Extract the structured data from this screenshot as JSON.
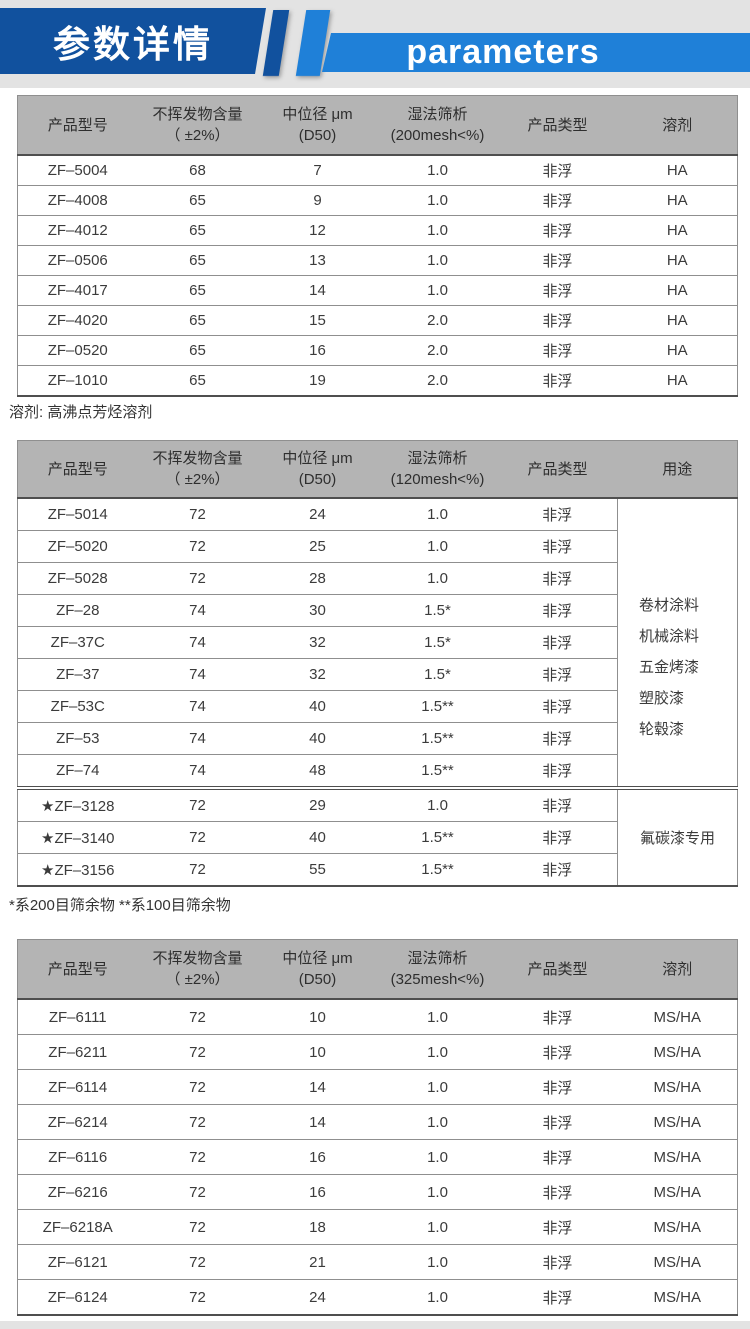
{
  "banner": {
    "title_cn": "参数详情",
    "title_en": "parameters",
    "colors": {
      "dark_blue": "#11519e",
      "light_blue": "#1f80d8",
      "background_gray": "#e3e3e3"
    }
  },
  "table_style": {
    "header_gray": "#b4b4b4",
    "row_border": "#8f8f8f",
    "heavy_border": "#4f4f4f"
  },
  "table1": {
    "columns": [
      [
        "产品型号",
        ""
      ],
      [
        "不挥发物含量",
        "（ ±2%）"
      ],
      [
        "中位径 μm",
        "(D50)"
      ],
      [
        "湿法筛析",
        "(200mesh<%)"
      ],
      [
        "产品类型",
        ""
      ],
      [
        "溶剂",
        ""
      ]
    ],
    "rows": [
      [
        "ZF–5004",
        "68",
        "7",
        "1.0",
        "非浮",
        "HA"
      ],
      [
        "ZF–4008",
        "65",
        "9",
        "1.0",
        "非浮",
        "HA"
      ],
      [
        "ZF–4012",
        "65",
        "12",
        "1.0",
        "非浮",
        "HA"
      ],
      [
        "ZF–0506",
        "65",
        "13",
        "1.0",
        "非浮",
        "HA"
      ],
      [
        "ZF–4017",
        "65",
        "14",
        "1.0",
        "非浮",
        "HA"
      ],
      [
        "ZF–4020",
        "65",
        "15",
        "2.0",
        "非浮",
        "HA"
      ],
      [
        "ZF–0520",
        "65",
        "16",
        "2.0",
        "非浮",
        "HA"
      ],
      [
        "ZF–1010",
        "65",
        "19",
        "2.0",
        "非浮",
        "HA"
      ]
    ],
    "note": "溶剂: 高沸点芳烃溶剂"
  },
  "table2": {
    "columns": [
      [
        "产品型号",
        ""
      ],
      [
        "不挥发物含量",
        "（ ±2%）"
      ],
      [
        "中位径 μm",
        "(D50)"
      ],
      [
        "湿法筛析",
        "(120mesh<%)"
      ],
      [
        "产品类型",
        ""
      ],
      [
        "用途",
        ""
      ]
    ],
    "groups": [
      {
        "rows": [
          [
            "ZF–5014",
            "72",
            "24",
            "1.0",
            "非浮"
          ],
          [
            "ZF–5020",
            "72",
            "25",
            "1.0",
            "非浮"
          ],
          [
            "ZF–5028",
            "72",
            "28",
            "1.0",
            "非浮"
          ],
          [
            "ZF–28",
            "74",
            "30",
            "1.5*",
            "非浮"
          ],
          [
            "ZF–37C",
            "74",
            "32",
            "1.5*",
            "非浮"
          ],
          [
            "ZF–37",
            "74",
            "32",
            "1.5*",
            "非浮"
          ],
          [
            "ZF–53C",
            "74",
            "40",
            "1.5**",
            "非浮"
          ],
          [
            "ZF–53",
            "74",
            "40",
            "1.5**",
            "非浮"
          ],
          [
            "ZF–74",
            "74",
            "48",
            "1.5**",
            "非浮"
          ]
        ],
        "usage": [
          "卷材涂料",
          "机械涂料",
          "五金烤漆",
          "塑胶漆",
          "轮毂漆"
        ]
      },
      {
        "rows": [
          [
            "★ZF–3128",
            "72",
            "29",
            "1.0",
            "非浮"
          ],
          [
            "★ZF–3140",
            "72",
            "40",
            "1.5**",
            "非浮"
          ],
          [
            "★ZF–3156",
            "72",
            "55",
            "1.5**",
            "非浮"
          ]
        ],
        "usage": [
          "氟碳漆专用"
        ]
      }
    ],
    "note": "*系200目筛余物  **系100目筛余物"
  },
  "table3": {
    "columns": [
      [
        "产品型号",
        ""
      ],
      [
        "不挥发物含量",
        "（ ±2%）"
      ],
      [
        "中位径 μm",
        "(D50)"
      ],
      [
        "湿法筛析",
        "(325mesh<%)"
      ],
      [
        "产品类型",
        ""
      ],
      [
        "溶剂",
        ""
      ]
    ],
    "rows": [
      [
        "ZF–6111",
        "72",
        "10",
        "1.0",
        "非浮",
        "MS/HA"
      ],
      [
        "ZF–6211",
        "72",
        "10",
        "1.0",
        "非浮",
        "MS/HA"
      ],
      [
        "ZF–6114",
        "72",
        "14",
        "1.0",
        "非浮",
        "MS/HA"
      ],
      [
        "ZF–6214",
        "72",
        "14",
        "1.0",
        "非浮",
        "MS/HA"
      ],
      [
        "ZF–6116",
        "72",
        "16",
        "1.0",
        "非浮",
        "MS/HA"
      ],
      [
        "ZF–6216",
        "72",
        "16",
        "1.0",
        "非浮",
        "MS/HA"
      ],
      [
        "ZF–6218A",
        "72",
        "18",
        "1.0",
        "非浮",
        "MS/HA"
      ],
      [
        "ZF–6121",
        "72",
        "21",
        "1.0",
        "非浮",
        "MS/HA"
      ],
      [
        "ZF–6124",
        "72",
        "24",
        "1.0",
        "非浮",
        "MS/HA"
      ]
    ]
  }
}
